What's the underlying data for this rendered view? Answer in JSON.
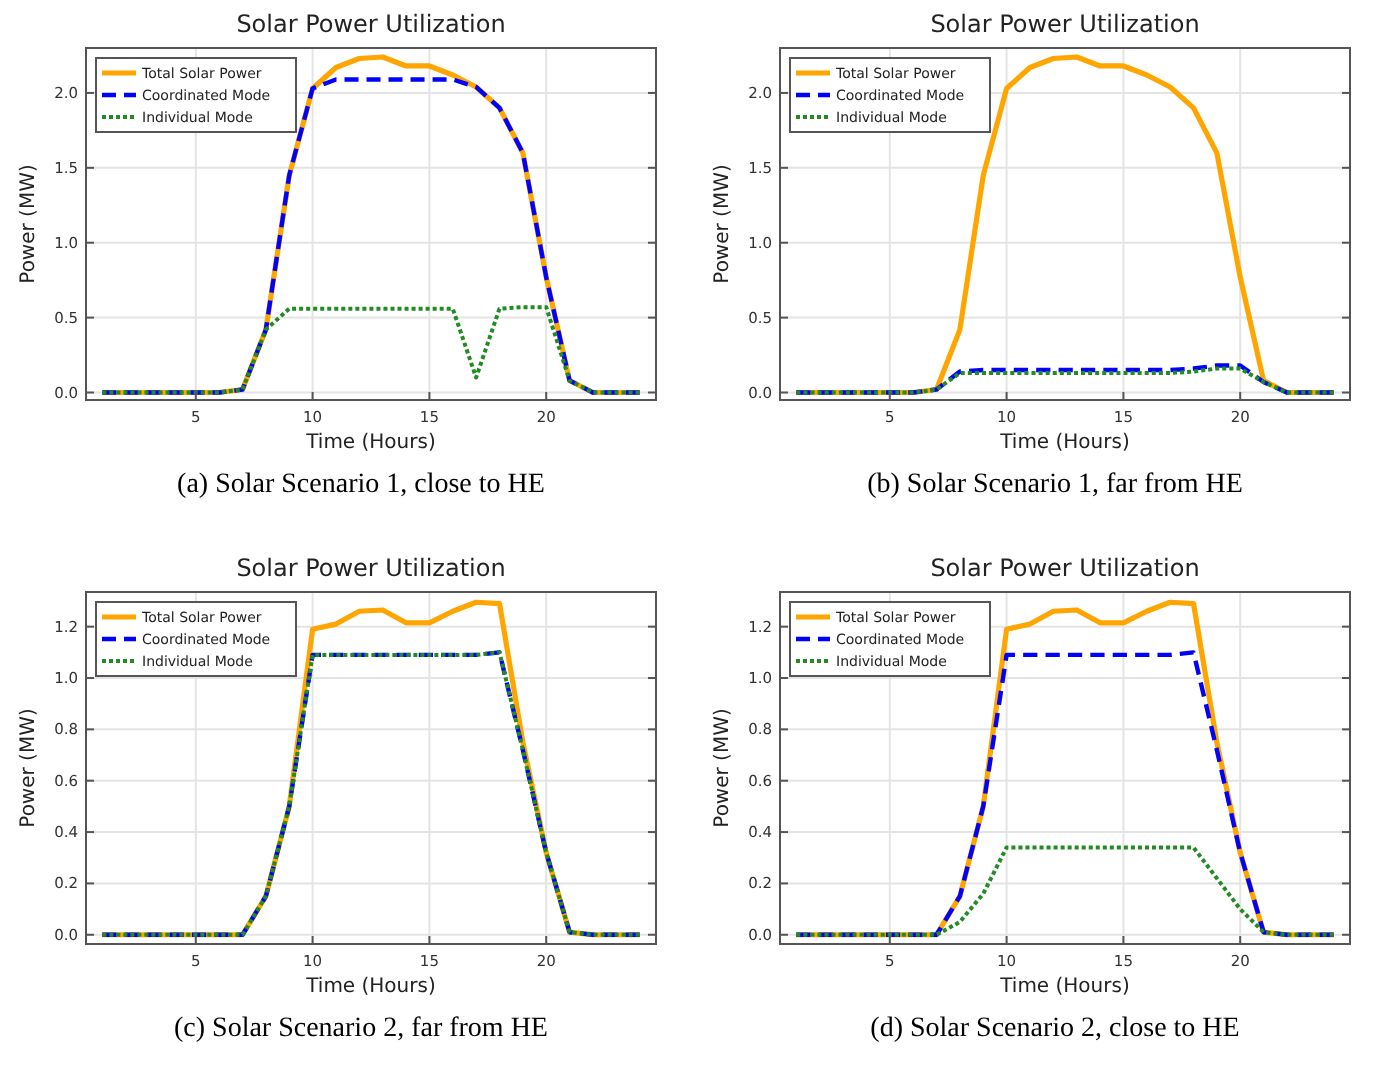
{
  "chart_data": [
    {
      "type": "line",
      "title": "Solar Power Utilization",
      "xlabel": "Time (Hours)",
      "ylabel": "Power (MW)",
      "annotations": [
        "(a) Solar Scenario 1, close to HE"
      ],
      "xlim": [
        0.3,
        24.7
      ],
      "ylim": [
        -0.05,
        2.3
      ],
      "xticks": [
        5,
        10,
        15,
        20
      ],
      "yticks": [
        {
          "value": 0,
          "label": "0.0"
        },
        {
          "value": 0.5,
          "label": "0.5"
        },
        {
          "value": 1,
          "label": "1.0"
        },
        {
          "value": 1.5,
          "label": "1.5"
        },
        {
          "value": 2,
          "label": "2.0"
        }
      ],
      "grid": true,
      "legend": "top left",
      "x": [
        1,
        2,
        3,
        4,
        5,
        6,
        7,
        8,
        9,
        10,
        11,
        12,
        13,
        14,
        15,
        16,
        17,
        18,
        19,
        20,
        21,
        22,
        23,
        24
      ],
      "series": [
        {
          "name": "Total Solar Power",
          "color": "#ffa500",
          "line_style": "solid",
          "values": [
            0,
            0,
            0,
            0,
            0,
            0,
            0.02,
            0.42,
            1.45,
            2.03,
            2.17,
            2.23,
            2.24,
            2.18,
            2.18,
            2.12,
            2.04,
            1.9,
            1.6,
            0.77,
            0.08,
            0,
            0,
            0
          ]
        },
        {
          "name": "Coordinated Mode",
          "color": "#0000ff",
          "line_style": "dashed",
          "values": [
            0,
            0,
            0,
            0,
            0,
            0,
            0.02,
            0.42,
            1.45,
            2.03,
            2.09,
            2.09,
            2.09,
            2.09,
            2.09,
            2.09,
            2.04,
            1.9,
            1.6,
            0.77,
            0.08,
            0,
            0,
            0
          ]
        },
        {
          "name": "Individual Mode",
          "color": "#228b22",
          "line_style": "dotted",
          "values": [
            0,
            0,
            0,
            0,
            0,
            0,
            0.02,
            0.42,
            0.56,
            0.56,
            0.56,
            0.56,
            0.56,
            0.56,
            0.56,
            0.56,
            0.1,
            0.56,
            0.57,
            0.57,
            0.08,
            0,
            0,
            0
          ]
        }
      ]
    },
    {
      "type": "line",
      "title": "Solar Power Utilization",
      "xlabel": "Time (Hours)",
      "ylabel": "Power (MW)",
      "annotations": [
        "(b) Solar Scenario 1, far from HE"
      ],
      "xlim": [
        0.3,
        24.7
      ],
      "ylim": [
        -0.05,
        2.3
      ],
      "xticks": [
        5,
        10,
        15,
        20
      ],
      "yticks": [
        {
          "value": 0,
          "label": "0.0"
        },
        {
          "value": 0.5,
          "label": "0.5"
        },
        {
          "value": 1,
          "label": "1.0"
        },
        {
          "value": 1.5,
          "label": "1.5"
        },
        {
          "value": 2,
          "label": "2.0"
        }
      ],
      "grid": true,
      "legend": "top left",
      "x": [
        1,
        2,
        3,
        4,
        5,
        6,
        7,
        8,
        9,
        10,
        11,
        12,
        13,
        14,
        15,
        16,
        17,
        18,
        19,
        20,
        21,
        22,
        23,
        24
      ],
      "series": [
        {
          "name": "Total Solar Power",
          "color": "#ffa500",
          "line_style": "solid",
          "values": [
            0,
            0,
            0,
            0,
            0,
            0,
            0.02,
            0.42,
            1.45,
            2.03,
            2.17,
            2.23,
            2.24,
            2.18,
            2.18,
            2.12,
            2.04,
            1.9,
            1.6,
            0.77,
            0.08,
            0,
            0,
            0
          ]
        },
        {
          "name": "Coordinated Mode",
          "color": "#0000ff",
          "line_style": "dashed",
          "values": [
            0,
            0,
            0,
            0,
            0,
            0,
            0.02,
            0.14,
            0.15,
            0.15,
            0.15,
            0.15,
            0.15,
            0.15,
            0.15,
            0.15,
            0.15,
            0.16,
            0.18,
            0.18,
            0.07,
            0,
            0,
            0
          ]
        },
        {
          "name": "Individual Mode",
          "color": "#228b22",
          "line_style": "dotted",
          "values": [
            0,
            0,
            0,
            0,
            0,
            0,
            0.02,
            0.13,
            0.13,
            0.13,
            0.13,
            0.13,
            0.13,
            0.13,
            0.13,
            0.13,
            0.13,
            0.14,
            0.16,
            0.16,
            0.07,
            0,
            0,
            0
          ]
        }
      ]
    },
    {
      "type": "line",
      "title": "Solar Power Utilization",
      "xlabel": "Time (Hours)",
      "ylabel": "Power (MW)",
      "annotations": [
        "(c) Solar Scenario 2, far from HE"
      ],
      "xlim": [
        0.3,
        24.7
      ],
      "ylim": [
        -0.036,
        1.335
      ],
      "xticks": [
        5,
        10,
        15,
        20
      ],
      "yticks": [
        {
          "value": 0,
          "label": "0.0"
        },
        {
          "value": 0.2,
          "label": "0.2"
        },
        {
          "value": 0.4,
          "label": "0.4"
        },
        {
          "value": 0.6,
          "label": "0.6"
        },
        {
          "value": 0.8,
          "label": "0.8"
        },
        {
          "value": 1,
          "label": "1.0"
        },
        {
          "value": 1.2,
          "label": "1.2"
        }
      ],
      "grid": true,
      "legend": "top left",
      "x": [
        1,
        2,
        3,
        4,
        5,
        6,
        7,
        8,
        9,
        10,
        11,
        12,
        13,
        14,
        15,
        16,
        17,
        18,
        19,
        20,
        21,
        22,
        23,
        24
      ],
      "series": [
        {
          "name": "Total Solar Power",
          "color": "#ffa500",
          "line_style": "solid",
          "values": [
            0,
            0,
            0,
            0,
            0,
            0,
            0,
            0.15,
            0.5,
            1.19,
            1.21,
            1.26,
            1.265,
            1.215,
            1.215,
            1.26,
            1.295,
            1.29,
            0.75,
            0.32,
            0.01,
            0,
            0,
            0
          ]
        },
        {
          "name": "Coordinated Mode",
          "color": "#0000ff",
          "line_style": "dashed",
          "values": [
            0,
            0,
            0,
            0,
            0,
            0,
            0,
            0.15,
            0.5,
            1.09,
            1.09,
            1.09,
            1.09,
            1.09,
            1.09,
            1.09,
            1.09,
            1.1,
            0.72,
            0.32,
            0.01,
            0,
            0,
            0
          ]
        },
        {
          "name": "Individual Mode",
          "color": "#228b22",
          "line_style": "dotted",
          "values": [
            0,
            0,
            0,
            0,
            0,
            0,
            0,
            0.15,
            0.5,
            1.09,
            1.09,
            1.09,
            1.09,
            1.09,
            1.09,
            1.09,
            1.09,
            1.1,
            0.72,
            0.32,
            0.01,
            0,
            0,
            0
          ]
        }
      ]
    },
    {
      "type": "line",
      "title": "Solar Power Utilization",
      "xlabel": "Time (Hours)",
      "ylabel": "Power (MW)",
      "annotations": [
        "(d) Solar Scenario 2, close to HE"
      ],
      "xlim": [
        0.3,
        24.7
      ],
      "ylim": [
        -0.036,
        1.335
      ],
      "xticks": [
        5,
        10,
        15,
        20
      ],
      "yticks": [
        {
          "value": 0,
          "label": "0.0"
        },
        {
          "value": 0.2,
          "label": "0.2"
        },
        {
          "value": 0.4,
          "label": "0.4"
        },
        {
          "value": 0.6,
          "label": "0.6"
        },
        {
          "value": 0.8,
          "label": "0.8"
        },
        {
          "value": 1,
          "label": "1.0"
        },
        {
          "value": 1.2,
          "label": "1.2"
        }
      ],
      "grid": true,
      "legend": "top left",
      "x": [
        1,
        2,
        3,
        4,
        5,
        6,
        7,
        8,
        9,
        10,
        11,
        12,
        13,
        14,
        15,
        16,
        17,
        18,
        19,
        20,
        21,
        22,
        23,
        24
      ],
      "series": [
        {
          "name": "Total Solar Power",
          "color": "#ffa500",
          "line_style": "solid",
          "values": [
            0,
            0,
            0,
            0,
            0,
            0,
            0,
            0.15,
            0.5,
            1.19,
            1.21,
            1.26,
            1.265,
            1.215,
            1.215,
            1.26,
            1.295,
            1.29,
            0.75,
            0.32,
            0.01,
            0,
            0,
            0
          ]
        },
        {
          "name": "Coordinated Mode",
          "color": "#0000ff",
          "line_style": "dashed",
          "values": [
            0,
            0,
            0,
            0,
            0,
            0,
            0,
            0.15,
            0.5,
            1.09,
            1.09,
            1.09,
            1.09,
            1.09,
            1.09,
            1.09,
            1.09,
            1.1,
            0.72,
            0.32,
            0.01,
            0,
            0,
            0
          ]
        },
        {
          "name": "Individual Mode",
          "color": "#228b22",
          "line_style": "dotted",
          "values": [
            0,
            0,
            0,
            0,
            0,
            0,
            0,
            0.05,
            0.16,
            0.34,
            0.34,
            0.34,
            0.34,
            0.34,
            0.34,
            0.34,
            0.34,
            0.34,
            0.22,
            0.1,
            0.01,
            0,
            0,
            0
          ]
        }
      ]
    }
  ]
}
